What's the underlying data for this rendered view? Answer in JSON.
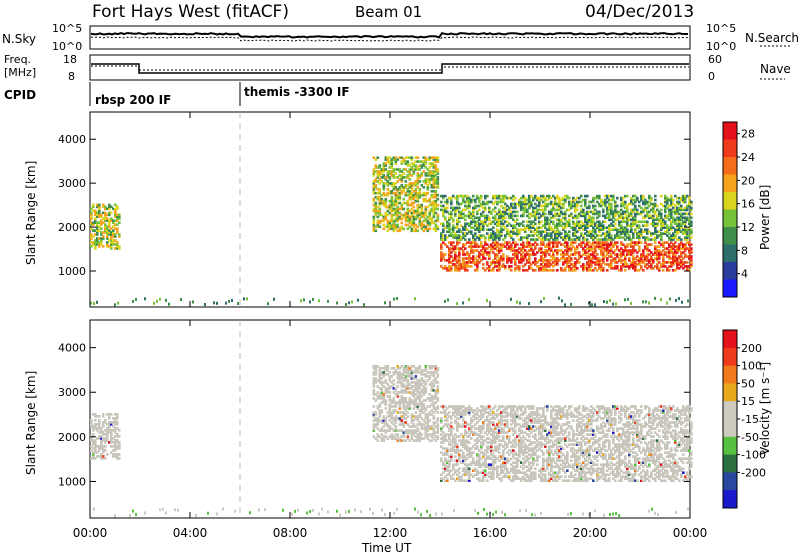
{
  "header": {
    "station": "Fort Hays West (fitACF)",
    "beam": "Beam 01",
    "date": "04/Dec/2013"
  },
  "panels": {
    "nsky_label": "N.Sky",
    "nsearch_label": "N.Search",
    "freq_label_top": "Freq.",
    "freq_label_unit": "[MHz]",
    "nave_label": "Nave",
    "cpid_label": "CPID",
    "nsky_ticks": [
      "10^5",
      "10^0"
    ],
    "nsearch_ticks": [
      "10^5",
      "10^0"
    ],
    "freq_ticks": [
      "18",
      "8"
    ],
    "nave_ticks": [
      "60",
      "0"
    ],
    "cpid_segments": [
      {
        "label": "rbsp 200 IF",
        "start_h": 0
      },
      {
        "label": "themis -3300 IF",
        "start_h": 6
      }
    ]
  },
  "colors": {
    "power_scale": [
      "#1a1aff",
      "#2a3d9c",
      "#2e6e6a",
      "#3f8f4a",
      "#78c23a",
      "#d9d41c",
      "#f5a21c",
      "#f46d1c",
      "#ef3a1c",
      "#e4101c"
    ],
    "velocity_scale": [
      "#1a1acc",
      "#2848a0",
      "#2c7040",
      "#58c040",
      "#cdcabf",
      "#cdcabf",
      "#e6a81c",
      "#f07a1c",
      "#ef3a1c",
      "#e4101c"
    ],
    "ground_scatter": "#c8c5bb"
  },
  "chart_data": [
    {
      "type": "heatmap",
      "name": "Power",
      "xlabel": "Time UT",
      "ylabel": "Slant Range [km]",
      "x_ticks": [
        "00:00",
        "04:00",
        "08:00",
        "12:00",
        "16:00",
        "20:00",
        "00:00"
      ],
      "y_ticks": [
        "1000",
        "2000",
        "3000",
        "4000"
      ],
      "xlim_hours": [
        0,
        24
      ],
      "ylim_km": [
        180,
        4620
      ],
      "colorbar_label": "Power [dB]",
      "colorbar_ticks": [
        "4",
        "8",
        "12",
        "16",
        "20",
        "24",
        "28"
      ],
      "colorbar_range": [
        0,
        30
      ],
      "echo_regions": [
        {
          "t0": 0.0,
          "t1": 1.2,
          "r_low": 1500,
          "r_high": 2500,
          "level": "mid"
        },
        {
          "t0": 11.3,
          "t1": 13.9,
          "r_low": 1900,
          "r_high": 3600,
          "level": "mid"
        },
        {
          "t0": 14.0,
          "t1": 24.0,
          "r_low": 1000,
          "r_high": 1650,
          "level": "high"
        },
        {
          "t0": 14.0,
          "t1": 24.0,
          "r_low": 1700,
          "r_high": 2700,
          "level": "low"
        }
      ]
    },
    {
      "type": "heatmap",
      "name": "Velocity",
      "xlabel": "Time UT",
      "ylabel": "Slant Range [km]",
      "x_ticks": [
        "00:00",
        "04:00",
        "08:00",
        "12:00",
        "16:00",
        "20:00",
        "00:00"
      ],
      "y_ticks": [
        "1000",
        "2000",
        "3000",
        "4000"
      ],
      "xlim_hours": [
        0,
        24
      ],
      "ylim_km": [
        180,
        4620
      ],
      "colorbar_label": "Velocity [m s⁻¹]",
      "colorbar_ticks": [
        "200",
        "100",
        "50",
        "15",
        "-15",
        "-50",
        "-100",
        "-200"
      ],
      "colorbar_range": [
        -250,
        250
      ],
      "echo_regions": [
        {
          "t0": 0.0,
          "t1": 1.2,
          "r_low": 1500,
          "r_high": 2500,
          "kind": "ground_scatter"
        },
        {
          "t0": 11.3,
          "t1": 13.9,
          "r_low": 1900,
          "r_high": 3600,
          "kind": "ground_scatter"
        },
        {
          "t0": 14.0,
          "t1": 24.0,
          "r_low": 1000,
          "r_high": 2700,
          "kind": "ground_scatter"
        }
      ]
    }
  ]
}
